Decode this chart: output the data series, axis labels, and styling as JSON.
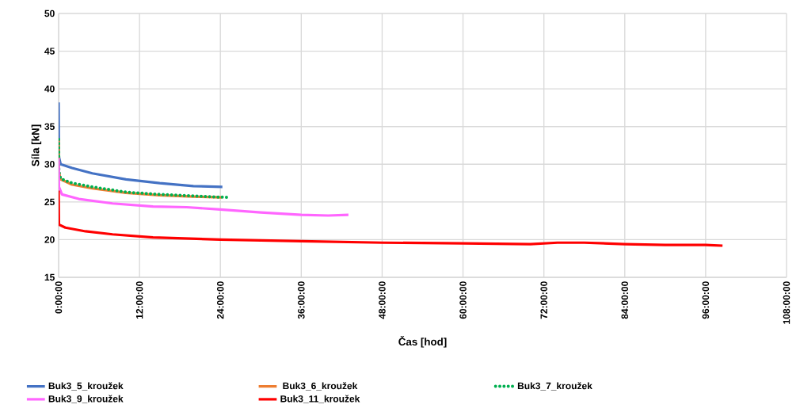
{
  "chart_data": {
    "type": "line",
    "xlabel": "Čas [hod]",
    "ylabel": "Síla [kN]",
    "xlim": [
      0,
      108
    ],
    "ylim": [
      15,
      50
    ],
    "xticks": [
      {
        "value": 0,
        "label": "0:00:00"
      },
      {
        "value": 12,
        "label": "12:00:00"
      },
      {
        "value": 24,
        "label": "24:00:00"
      },
      {
        "value": 36,
        "label": "36:00:00"
      },
      {
        "value": 48,
        "label": "48:00:00"
      },
      {
        "value": 60,
        "label": "60:00:00"
      },
      {
        "value": 72,
        "label": "72:00:00"
      },
      {
        "value": 84,
        "label": "84:00:00"
      },
      {
        "value": 96,
        "label": "96:00:00"
      },
      {
        "value": 108,
        "label": "108:00:00"
      }
    ],
    "yticks": [
      15,
      20,
      25,
      30,
      35,
      40,
      45,
      50
    ],
    "grid": true,
    "legend": "bottom",
    "marker": "none",
    "series": [
      {
        "name": "Buk3_5_kroužek",
        "color": "#4472c4",
        "line_style": "solid",
        "x": [
          0,
          0.05,
          0.3,
          2,
          5,
          10,
          15,
          20,
          24.3
        ],
        "values": [
          38.2,
          31,
          30,
          29.5,
          28.8,
          28,
          27.5,
          27.1,
          27.0
        ]
      },
      {
        "name": "Buk3_6_kroužek",
        "color": "#ed7d31",
        "line_style": "solid",
        "x": [
          0,
          0.05,
          0.3,
          2,
          5,
          10,
          15,
          20,
          24.2
        ],
        "values": [
          33.2,
          29,
          28,
          27.3,
          26.8,
          26.2,
          25.9,
          25.7,
          25.6
        ]
      },
      {
        "name": "Buk3_7_kroužek",
        "color": "#00b050",
        "line_style": "dotted",
        "x": [
          0,
          0.05,
          0.3,
          2,
          5,
          10,
          15,
          20,
          25
        ],
        "values": [
          33.3,
          29,
          28.1,
          27.5,
          27,
          26.3,
          26,
          25.8,
          25.6
        ]
      },
      {
        "name": "Buk3_9_kroužek",
        "color": "#ff66ff",
        "line_style": "solid",
        "x": [
          0,
          0.05,
          0.5,
          3,
          8,
          14,
          19,
          24,
          30,
          36,
          40,
          43
        ],
        "values": [
          30.8,
          27,
          26,
          25.4,
          24.8,
          24.4,
          24.3,
          24,
          23.6,
          23.3,
          23.2,
          23.3
        ]
      },
      {
        "name": "Buk3_11_kroužek",
        "color": "#ff0000",
        "line_style": "solid",
        "x": [
          0,
          0.05,
          1,
          4,
          8,
          14,
          24,
          36,
          48,
          60,
          70,
          74,
          78,
          84,
          90,
          96,
          98.5
        ],
        "values": [
          26.5,
          22,
          21.6,
          21.1,
          20.7,
          20.3,
          20,
          19.8,
          19.6,
          19.5,
          19.4,
          19.6,
          19.6,
          19.4,
          19.3,
          19.3,
          19.2
        ]
      }
    ]
  }
}
